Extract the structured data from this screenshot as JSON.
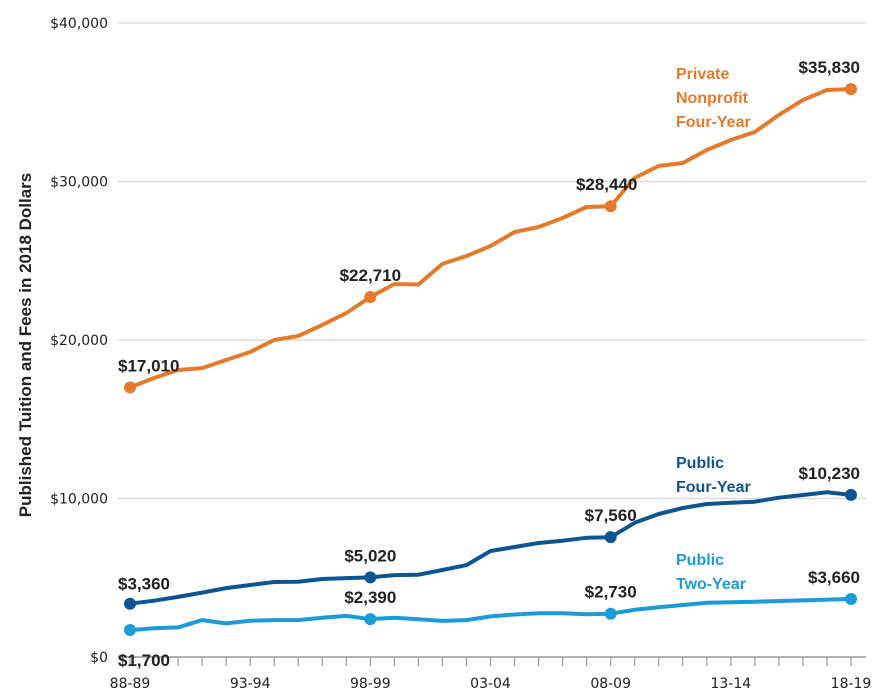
{
  "chart_data": {
    "type": "line",
    "title": "",
    "xlabel": "",
    "ylabel": "Published Tuition and Fees in 2018 Dollars",
    "ylim": [
      0,
      40000
    ],
    "yticks": [
      0,
      10000,
      20000,
      30000,
      40000
    ],
    "ytick_labels": [
      "$0",
      "$10,000",
      "$20,000",
      "$30,000",
      "$40,000"
    ],
    "grid": "horizontal",
    "categories": [
      "88-89",
      "89-90",
      "90-91",
      "91-92",
      "92-93",
      "93-94",
      "94-95",
      "95-96",
      "96-97",
      "97-98",
      "98-99",
      "99-00",
      "00-01",
      "01-02",
      "02-03",
      "03-04",
      "04-05",
      "05-06",
      "06-07",
      "07-08",
      "08-09",
      "09-10",
      "10-11",
      "11-12",
      "12-13",
      "13-14",
      "14-15",
      "15-16",
      "16-17",
      "17-18",
      "18-19"
    ],
    "xtick_labels": [
      "88-89",
      "93-94",
      "98-99",
      "03-04",
      "08-09",
      "13-14",
      "18-19"
    ],
    "series": [
      {
        "name": "Private Nonprofit Four-Year",
        "label_lines": [
          "Private",
          "Nonprofit",
          "Four-Year"
        ],
        "color": "#e37a2c",
        "values": [
          17010,
          17600,
          18110,
          18230,
          18740,
          19240,
          20000,
          20250,
          20950,
          21700,
          22710,
          23530,
          23500,
          24800,
          25300,
          25930,
          26810,
          27130,
          27700,
          28390,
          28440,
          30220,
          30980,
          31170,
          31990,
          32620,
          33120,
          34200,
          35140,
          35770,
          35830
        ],
        "annotations": [
          {
            "category": "88-89",
            "label": "$17,010"
          },
          {
            "category": "98-99",
            "label": "$22,710"
          },
          {
            "category": "08-09",
            "label": "$28,440"
          },
          {
            "category": "18-19",
            "label": "$35,830"
          }
        ]
      },
      {
        "name": "Public Four-Year",
        "label_lines": [
          "Public",
          "Four-Year"
        ],
        "color": "#0d5592",
        "values": [
          3360,
          3550,
          3790,
          4060,
          4350,
          4540,
          4730,
          4750,
          4920,
          4980,
          5020,
          5170,
          5190,
          5490,
          5800,
          6690,
          6940,
          7190,
          7340,
          7520,
          7560,
          8470,
          9020,
          9400,
          9650,
          9730,
          9800,
          10050,
          10220,
          10390,
          10230
        ],
        "annotations": [
          {
            "category": "88-89",
            "label": "$3,360"
          },
          {
            "category": "98-99",
            "label": "$5,020"
          },
          {
            "category": "08-09",
            "label": "$7,560"
          },
          {
            "category": "18-19",
            "label": "$10,230"
          }
        ]
      },
      {
        "name": "Public Two-Year",
        "label_lines": [
          "Public",
          "Two-Year"
        ],
        "color": "#1b9bd7",
        "values": [
          1700,
          1810,
          1870,
          2330,
          2120,
          2290,
          2330,
          2330,
          2480,
          2590,
          2390,
          2480,
          2380,
          2280,
          2330,
          2560,
          2680,
          2760,
          2760,
          2700,
          2730,
          2980,
          3140,
          3280,
          3420,
          3450,
          3480,
          3530,
          3570,
          3620,
          3660
        ],
        "annotations": [
          {
            "category": "88-89",
            "label": "$1,700"
          },
          {
            "category": "98-99",
            "label": "$2,390"
          },
          {
            "category": "08-09",
            "label": "$2,730"
          },
          {
            "category": "18-19",
            "label": "$3,660"
          }
        ]
      }
    ]
  }
}
